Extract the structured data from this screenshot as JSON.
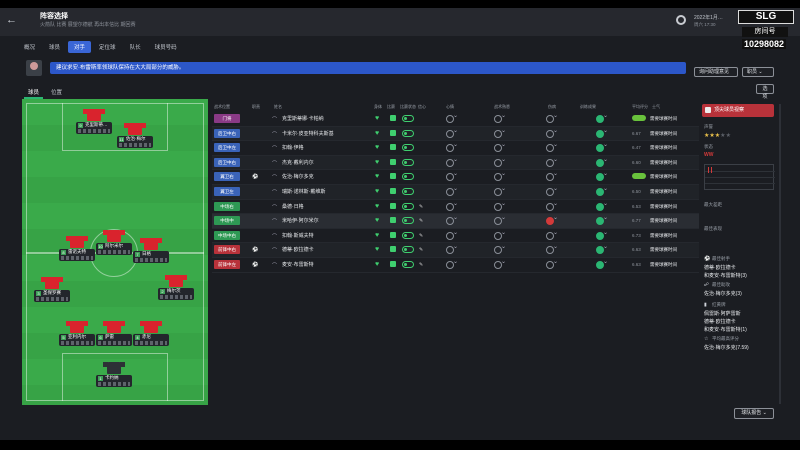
{
  "header": {
    "title": "阵容选择",
    "subtitle": "火箭队 比赛  展望尔德航  再出本信比  期回赛",
    "date": "2022年1月…",
    "time": "周六 17:30",
    "logo": "SLG",
    "room_label": "房间号",
    "room_number": "10298082"
  },
  "tabs": [
    {
      "label": "概况",
      "active": false
    },
    {
      "label": "球员",
      "active": false
    },
    {
      "label": "对手",
      "active": true
    },
    {
      "label": "定位球",
      "active": false
    },
    {
      "label": "队长",
      "active": false
    },
    {
      "label": "球员号码",
      "active": false
    }
  ],
  "message": {
    "text": "建议求安·布雷斯率领球队保持在大大局部分的威胁。",
    "button_left": "询问助理意见",
    "button_right": "职员"
  },
  "subtabs": [
    {
      "label": "球员",
      "active": true
    },
    {
      "label": "位置",
      "active": false
    }
  ],
  "pitch_players": [
    {
      "num": "9",
      "name": "克里斯蒂…"
    },
    {
      "num": "11",
      "name": "佐治·梅尔"
    },
    {
      "num": "8",
      "name": "雷诺夫特"
    },
    {
      "num": "10",
      "name": "阿尔米尔"
    },
    {
      "num": "7",
      "name": "日格"
    },
    {
      "num": "3",
      "name": "圣保罗赛"
    },
    {
      "num": "2",
      "name": "梅尔茨"
    },
    {
      "num": "5",
      "name": "亚利内尔"
    },
    {
      "num": "6",
      "name": "萨雷"
    },
    {
      "num": "4",
      "name": "赤尼"
    },
    {
      "num": "1",
      "name": "卡约纳"
    }
  ],
  "table": {
    "headers": [
      "战术位置",
      "职责",
      "姓名",
      "身体",
      "比赛",
      "比赛状态",
      "信心",
      "心情",
      "战术熟悉",
      "角色能力",
      "伤病",
      "训练成果",
      "平均评分",
      "士气"
    ],
    "rows": [
      {
        "pos": "门将",
        "pos_type": "gk",
        "name": "克里斯蒂娜·卡帕纳",
        "rating": "",
        "need": "需要球赛时间",
        "green": true,
        "icon": "",
        "chat": false,
        "s3": "",
        "hl": false
      },
      {
        "pos": "后卫中右",
        "pos_type": "df",
        "name": "卡米尔·皮亚特科夫斯基",
        "rating": "6.67",
        "need": "需要球赛时间",
        "green": false,
        "icon": "",
        "chat": false,
        "s3": "",
        "hl": false
      },
      {
        "pos": "后卫中左",
        "pos_type": "df",
        "name": "扣翰·伊格",
        "rating": "6.47",
        "need": "需要球赛时间",
        "green": false,
        "icon": "",
        "chat": false,
        "s3": "",
        "hl": false
      },
      {
        "pos": "后卫中右",
        "pos_type": "df",
        "name": "杰克·戴利内尔",
        "rating": "6.60",
        "need": "需要球赛时间",
        "green": false,
        "icon": "",
        "chat": false,
        "s3": "",
        "hl": false
      },
      {
        "pos": "翼卫右",
        "pos_type": "df",
        "name": "佐治·梅尔多克",
        "rating": "",
        "need": "需要球赛时间",
        "green": true,
        "icon": "⚽",
        "chat": false,
        "s3": "",
        "hl": false
      },
      {
        "pos": "翼卫左",
        "pos_type": "df",
        "name": "瑞斯·诺林斯·戴维斯",
        "rating": "6.50",
        "need": "需要球赛时间",
        "green": false,
        "icon": "",
        "chat": false,
        "s3": "",
        "hl": false
      },
      {
        "pos": "中场右",
        "pos_type": "mf",
        "name": "桑德·日格",
        "rating": "6.53",
        "need": "需要球赛时间",
        "green": false,
        "icon": "",
        "chat": true,
        "s3": "",
        "hl": false
      },
      {
        "pos": "中场中",
        "pos_type": "mf",
        "name": "米哈伊·阿尔米尔",
        "rating": "6.77",
        "need": "需要球赛时间",
        "green": false,
        "icon": "",
        "chat": true,
        "s3": "red",
        "hl": true
      },
      {
        "pos": "中场中右",
        "pos_type": "mf",
        "name": "扣翰·斯威夫特",
        "rating": "6.73",
        "need": "需要球赛时间",
        "green": false,
        "icon": "",
        "chat": true,
        "s3": "",
        "hl": false
      },
      {
        "pos": "前锋中右",
        "pos_type": "fw",
        "name": "德蒂·欧拉德卡",
        "rating": "6.63",
        "need": "需要球赛时间",
        "green": false,
        "icon": "⚽",
        "chat": true,
        "s3": "",
        "hl": false
      },
      {
        "pos": "前锋中左",
        "pos_type": "fw",
        "name": "麦安·布雷斯特",
        "rating": "6.63",
        "need": "需要球赛时间",
        "green": false,
        "icon": "⚽",
        "chat": true,
        "s3": "",
        "hl": false
      }
    ]
  },
  "right_panel": {
    "button": "顶尖球员视察",
    "label_a": "声誉",
    "stars_on": 3,
    "stars_total": 5,
    "label_b": "状态",
    "form": "WW",
    "label_c": "最大差距",
    "label_d": "最佳表现",
    "label_e": "最佳射手",
    "val_e": "德蒂·欧拉德卡",
    "val_e2": "和麦安·布雷斯特(3)",
    "label_f": "最佳助攻",
    "val_f": "佐治·梅尔多克(3)",
    "label_g": "红黄牌",
    "val_g": "佩雷斯·阿萨雷斯",
    "val_g2": "德蒂·欧拉德卡",
    "val_g3": "和麦安·布雷斯特(1)",
    "label_h": "平均最高评分",
    "val_h": "佐治·梅尔多克(7.59)"
  },
  "footer": {
    "button": "球队报告"
  }
}
